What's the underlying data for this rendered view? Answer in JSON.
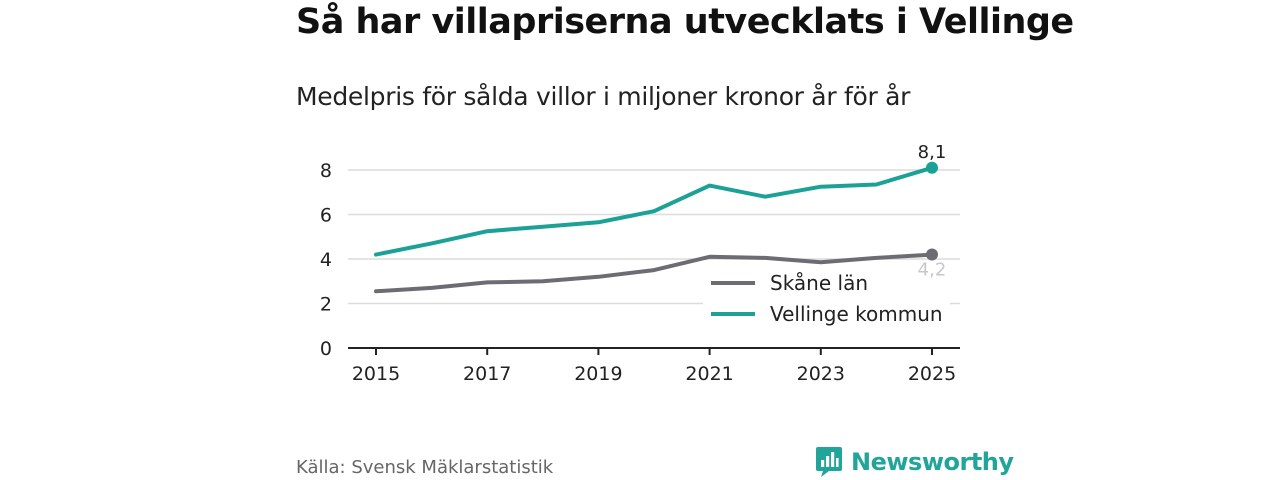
{
  "title": "Så har villapriserna utvecklats i Vellinge",
  "subtitle": "Medelpris för sålda villor i miljoner kronor år för år",
  "source": "Källa: Svensk Mäklarstatistik",
  "brand": {
    "name": "Newsworthy",
    "icon": "bar-chart-badge-icon",
    "color": "#21a59a"
  },
  "chart_data": {
    "type": "line",
    "title": "Så har villapriserna utvecklats i Vellinge",
    "subtitle": "Medelpris för sålda villor i miljoner kronor år för år",
    "x": [
      2015,
      2016,
      2017,
      2018,
      2019,
      2020,
      2021,
      2022,
      2023,
      2024,
      2025
    ],
    "x_ticks": [
      "2015",
      "2017",
      "2019",
      "2021",
      "2023",
      "2025"
    ],
    "y_ticks": [
      "0",
      "2",
      "4",
      "6",
      "8"
    ],
    "ylim": [
      0,
      8.8
    ],
    "xlabel": "",
    "ylabel": "",
    "grid": true,
    "legend_position": "bottom-right",
    "series": [
      {
        "name": "Skåne län",
        "color": "#6e6c73",
        "values": [
          2.55,
          2.7,
          2.95,
          3.0,
          3.2,
          3.5,
          4.1,
          4.05,
          3.85,
          4.05,
          4.2
        ],
        "end_label": "4,2",
        "end_label_color": "#c8c8c8"
      },
      {
        "name": "Vellinge kommun",
        "color": "#1ba196",
        "values": [
          4.2,
          4.7,
          5.25,
          5.45,
          5.65,
          6.15,
          7.3,
          6.8,
          7.25,
          7.35,
          8.1
        ],
        "end_label": "8,1",
        "end_label_color": "#222222"
      }
    ]
  }
}
